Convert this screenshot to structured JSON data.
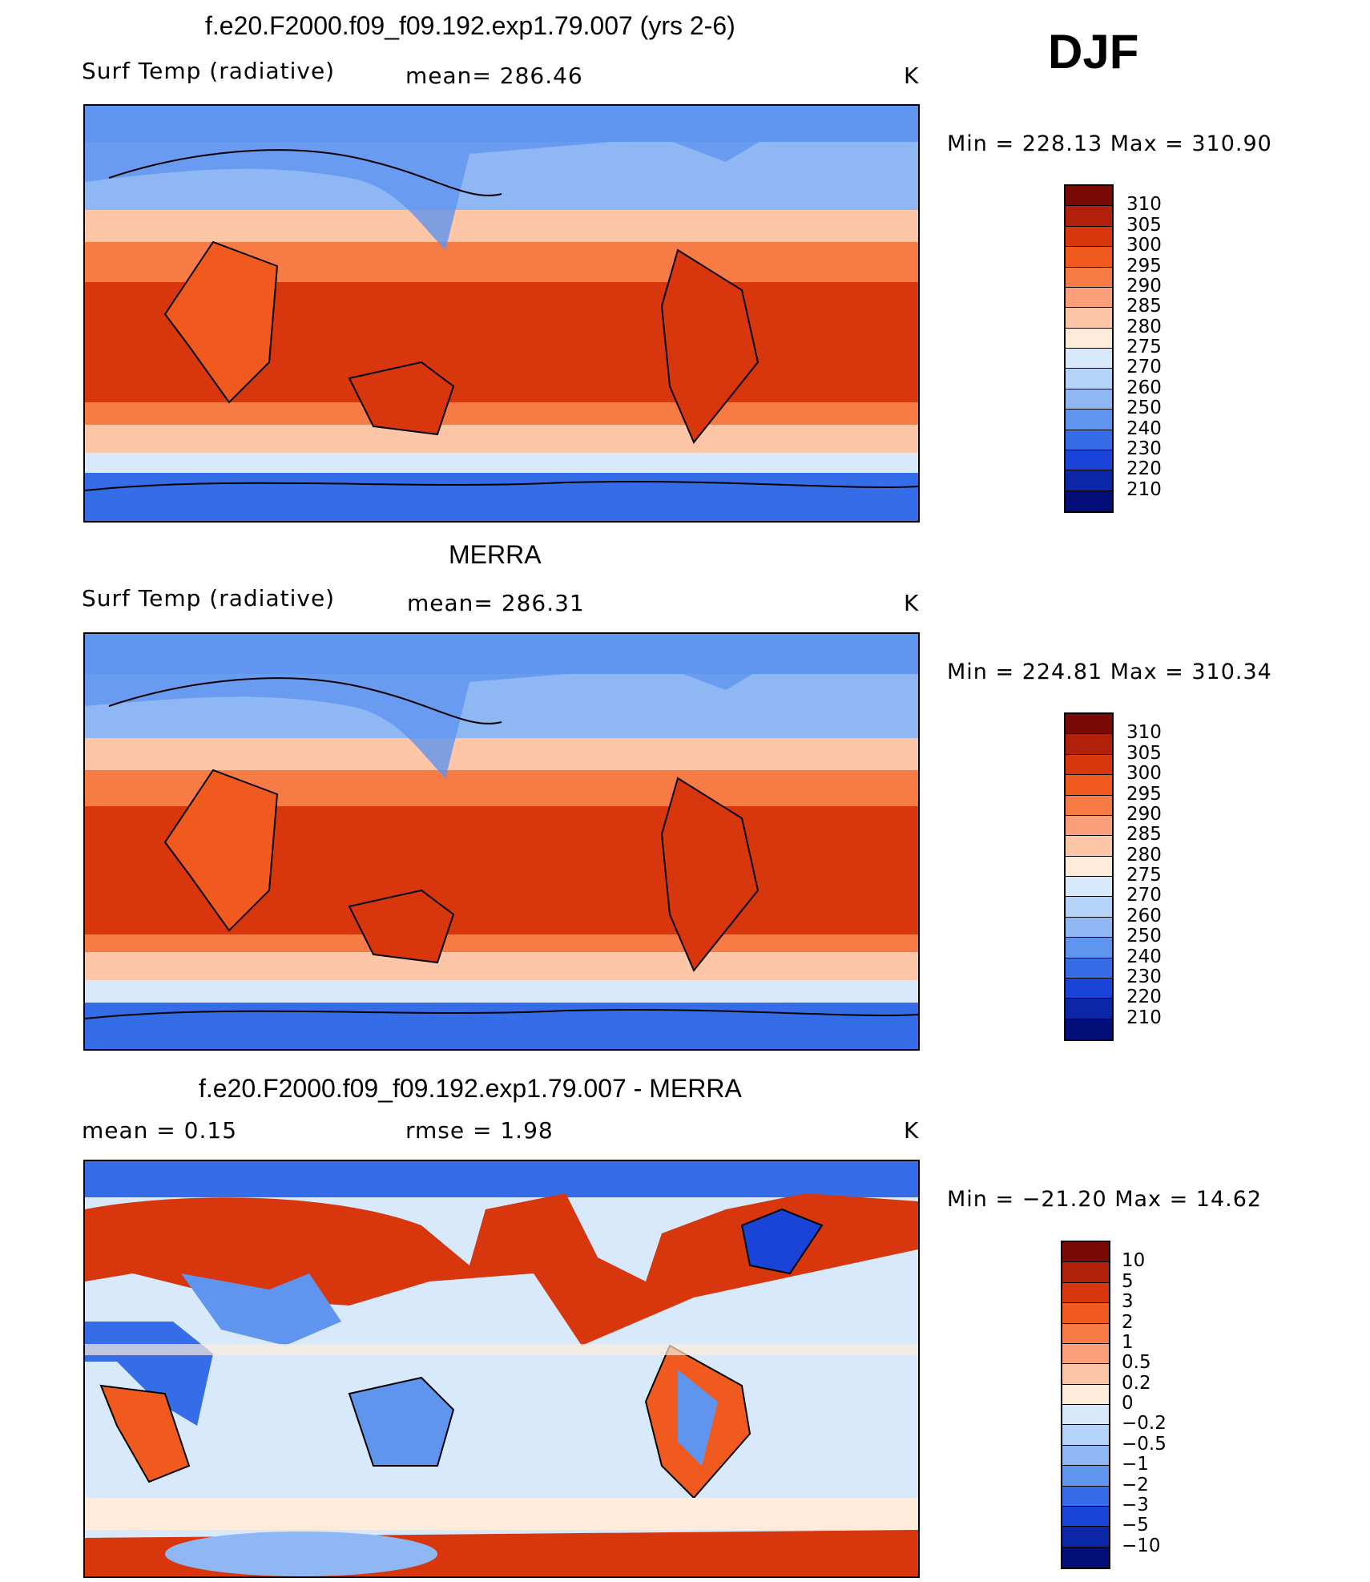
{
  "season": "DJF",
  "panels": [
    {
      "title": "f.e20.F2000.f09_f09.192.exp1.79.007 (yrs 2-6)",
      "variable": "Surf Temp (radiative)",
      "stat": "mean=  286.46",
      "units": "K",
      "minmax": "Min  =  228.13  Max  =  310.90",
      "map_label": "model surface temperature map"
    },
    {
      "title": "MERRA",
      "variable": "Surf Temp (radiative)",
      "stat": "mean=  286.31",
      "units": "K",
      "minmax": "Min  =  224.81  Max  =  310.34",
      "map_label": "MERRA surface temperature map"
    },
    {
      "title": "f.e20.F2000.f09_f09.192.exp1.79.007 - MERRA",
      "stat_left": "mean  =     0.15",
      "stat_mid": "rmse  =     1.98",
      "units": "K",
      "minmax": "Min  =  −21.20  Max  =    14.62",
      "map_label": "difference map"
    }
  ],
  "colorbars": {
    "temperature": {
      "labels": [
        "310",
        "305",
        "300",
        "295",
        "290",
        "285",
        "280",
        "275",
        "270",
        "260",
        "250",
        "240",
        "230",
        "220",
        "210"
      ],
      "colors": [
        "#7a0a06",
        "#b0200a",
        "#d8370e",
        "#f05a1e",
        "#f77b45",
        "#fba07a",
        "#fdc6a6",
        "#feebd9",
        "#d8e9fb",
        "#b5d3f8",
        "#8fb7f4",
        "#5f94ef",
        "#356ce8",
        "#1a44d8",
        "#0b26a6",
        "#020f78"
      ]
    },
    "difference": {
      "labels": [
        "10",
        "5",
        "3",
        "2",
        "1",
        "0.5",
        "0.2",
        "0",
        "−0.2",
        "−0.5",
        "−1",
        "−2",
        "−3",
        "−5",
        "−10"
      ],
      "colors": [
        "#7a0a06",
        "#b0200a",
        "#d8370e",
        "#f05a1e",
        "#f77b45",
        "#fba07a",
        "#fdc6a6",
        "#feebd9",
        "#d8e9fb",
        "#b5d3f8",
        "#8fb7f4",
        "#5f94ef",
        "#356ce8",
        "#1a44d8",
        "#0b26a6",
        "#020f78"
      ]
    }
  }
}
